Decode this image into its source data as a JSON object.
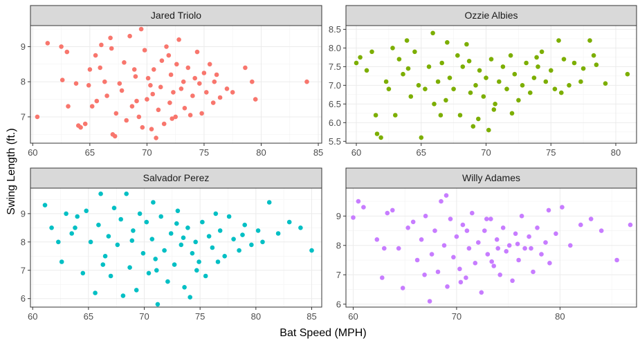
{
  "xlabel": "Bat Speed (MPH)",
  "ylabel": "Swing Length (ft.)",
  "chart_data": [
    {
      "type": "scatter",
      "title": "Jared Triolo",
      "color": "#F8766D",
      "xlim": [
        59.8,
        85.3
      ],
      "ylim": [
        6.25,
        9.6
      ],
      "xticks": [
        60,
        65,
        70,
        75,
        80,
        85
      ],
      "xtick_labels": [
        "60",
        "65",
        "70",
        "75",
        "80",
        "85"
      ],
      "yticks": [
        7,
        8,
        9
      ],
      "ytick_labels": [
        "7",
        "8",
        "9"
      ],
      "grid": true,
      "points": [
        [
          60.4,
          7.0
        ],
        [
          61.3,
          9.1
        ],
        [
          62.5,
          9.0
        ],
        [
          62.6,
          8.05
        ],
        [
          63.0,
          8.85
        ],
        [
          63.1,
          7.3
        ],
        [
          64.0,
          6.75
        ],
        [
          64.2,
          6.7
        ],
        [
          64.6,
          6.8
        ],
        [
          65.2,
          7.3
        ],
        [
          64.9,
          7.9
        ],
        [
          65.5,
          8.75
        ],
        [
          65.6,
          7.45
        ],
        [
          66.0,
          9.05
        ],
        [
          66.3,
          8.0
        ],
        [
          65.9,
          8.4
        ],
        [
          66.5,
          7.6
        ],
        [
          66.8,
          9.25
        ],
        [
          67.0,
          6.5
        ],
        [
          67.2,
          6.45
        ],
        [
          67.3,
          7.1
        ],
        [
          67.8,
          7.75
        ],
        [
          68.0,
          8.55
        ],
        [
          68.2,
          6.9
        ],
        [
          68.5,
          9.3
        ],
        [
          68.7,
          7.3
        ],
        [
          69.0,
          8.15
        ],
        [
          69.3,
          7.0
        ],
        [
          69.5,
          9.5
        ],
        [
          69.6,
          6.7
        ],
        [
          69.8,
          8.9
        ],
        [
          70.0,
          7.5
        ],
        [
          70.1,
          8.1
        ],
        [
          70.3,
          7.9
        ],
        [
          70.5,
          7.65
        ],
        [
          70.6,
          8.35
        ],
        [
          70.8,
          6.4
        ],
        [
          71.0,
          7.2
        ],
        [
          71.2,
          7.85
        ],
        [
          71.3,
          8.6
        ],
        [
          71.5,
          6.8
        ],
        [
          71.7,
          9.0
        ],
        [
          72.0,
          7.4
        ],
        [
          72.1,
          8.2
        ],
        [
          72.3,
          7.7
        ],
        [
          72.5,
          7.0
        ],
        [
          72.6,
          8.5
        ],
        [
          72.8,
          9.2
        ],
        [
          73.0,
          7.8
        ],
        [
          73.2,
          8.0
        ],
        [
          73.3,
          7.25
        ],
        [
          73.6,
          8.4
        ],
        [
          74.0,
          7.6
        ],
        [
          74.2,
          8.1
        ],
        [
          74.4,
          8.85
        ],
        [
          74.6,
          7.95
        ],
        [
          74.8,
          7.1
        ],
        [
          75.0,
          8.25
        ],
        [
          75.2,
          7.7
        ],
        [
          75.5,
          8.5
        ],
        [
          75.8,
          7.4
        ],
        [
          76.1,
          8.2
        ],
        [
          76.4,
          7.55
        ],
        [
          77.0,
          7.8
        ],
        [
          77.5,
          7.7
        ],
        [
          78.6,
          8.4
        ],
        [
          79.2,
          8.0
        ],
        [
          79.5,
          7.5
        ],
        [
          84.0,
          8.0
        ],
        [
          63.8,
          7.95
        ],
        [
          65.0,
          8.35
        ],
        [
          66.9,
          8.95
        ],
        [
          68.9,
          8.35
        ],
        [
          70.4,
          6.65
        ],
        [
          71.9,
          8.75
        ],
        [
          73.8,
          7.05
        ],
        [
          75.9,
          8.0
        ],
        [
          67.6,
          7.95
        ],
        [
          69.1,
          7.45
        ],
        [
          72.2,
          6.95
        ]
      ]
    },
    {
      "type": "scatter",
      "title": "Ozzie Albies",
      "color": "#7CAE00",
      "xlim": [
        59.2,
        81.6
      ],
      "ylim": [
        5.45,
        8.6
      ],
      "xticks": [
        60,
        65,
        70,
        75,
        80
      ],
      "xtick_labels": [
        "60",
        "65",
        "70",
        "75",
        "80"
      ],
      "yticks": [
        5.5,
        6.0,
        6.5,
        7.0,
        7.5,
        8.0,
        8.5
      ],
      "ytick_labels": [
        "5.5",
        "6.0",
        "6.5",
        "7.0",
        "7.5",
        "8.0",
        "8.5"
      ],
      "grid": true,
      "points": [
        [
          60.0,
          7.6
        ],
        [
          60.3,
          7.75
        ],
        [
          60.8,
          7.4
        ],
        [
          61.2,
          7.9
        ],
        [
          61.5,
          6.2
        ],
        [
          61.6,
          5.7
        ],
        [
          61.9,
          5.6
        ],
        [
          62.3,
          7.1
        ],
        [
          62.8,
          8.0
        ],
        [
          63.0,
          6.2
        ],
        [
          63.3,
          7.7
        ],
        [
          63.6,
          7.3
        ],
        [
          63.9,
          8.2
        ],
        [
          64.2,
          6.7
        ],
        [
          64.5,
          7.9
        ],
        [
          64.8,
          7.0
        ],
        [
          65.0,
          5.6
        ],
        [
          65.3,
          6.9
        ],
        [
          65.6,
          7.5
        ],
        [
          65.9,
          8.4
        ],
        [
          66.0,
          6.5
        ],
        [
          66.3,
          7.1
        ],
        [
          66.6,
          7.6
        ],
        [
          66.9,
          6.6
        ],
        [
          67.2,
          7.2
        ],
        [
          67.5,
          6.9
        ],
        [
          67.8,
          7.8
        ],
        [
          68.0,
          6.2
        ],
        [
          68.2,
          7.5
        ],
        [
          68.5,
          8.1
        ],
        [
          68.8,
          6.8
        ],
        [
          69.0,
          5.9
        ],
        [
          69.2,
          7.0
        ],
        [
          69.5,
          7.4
        ],
        [
          69.8,
          6.7
        ],
        [
          70.0,
          7.2
        ],
        [
          70.2,
          5.8
        ],
        [
          70.4,
          7.7
        ],
        [
          70.7,
          6.5
        ],
        [
          71.0,
          7.1
        ],
        [
          71.3,
          7.5
        ],
        [
          71.6,
          6.9
        ],
        [
          71.9,
          7.8
        ],
        [
          72.2,
          7.3
        ],
        [
          72.5,
          6.6
        ],
        [
          72.8,
          7.0
        ],
        [
          73.1,
          7.6
        ],
        [
          73.4,
          6.8
        ],
        [
          73.7,
          7.2
        ],
        [
          74.0,
          7.5
        ],
        [
          74.3,
          7.9
        ],
        [
          74.6,
          7.1
        ],
        [
          75.0,
          7.4
        ],
        [
          75.3,
          6.9
        ],
        [
          75.6,
          8.2
        ],
        [
          76.0,
          7.7
        ],
        [
          76.4,
          7.0
        ],
        [
          76.8,
          7.6
        ],
        [
          77.3,
          7.1
        ],
        [
          78.0,
          8.2
        ],
        [
          78.3,
          7.8
        ],
        [
          78.5,
          7.55
        ],
        [
          79.2,
          7.05
        ],
        [
          80.9,
          7.3
        ],
        [
          62.5,
          6.9
        ],
        [
          64.0,
          7.45
        ],
        [
          67.0,
          8.15
        ],
        [
          68.7,
          7.65
        ],
        [
          70.6,
          6.35
        ],
        [
          72.0,
          6.25
        ],
        [
          73.9,
          7.75
        ],
        [
          75.8,
          6.8
        ],
        [
          77.5,
          7.45
        ],
        [
          66.5,
          6.2
        ],
        [
          69.4,
          6.1
        ]
      ]
    },
    {
      "type": "scatter",
      "title": "Salvador Perez",
      "color": "#00BFC4",
      "xlim": [
        59.8,
        85.9
      ],
      "ylim": [
        5.7,
        9.9
      ],
      "xticks": [
        60,
        65,
        70,
        75,
        80,
        85
      ],
      "xtick_labels": [
        "60",
        "65",
        "70",
        "75",
        "80",
        "85"
      ],
      "yticks": [
        6,
        7,
        8,
        9
      ],
      "ytick_labels": [
        "6",
        "7",
        "8",
        "9"
      ],
      "grid": true,
      "points": [
        [
          61.1,
          9.3
        ],
        [
          61.7,
          8.5
        ],
        [
          62.3,
          8.0
        ],
        [
          62.6,
          7.3
        ],
        [
          63.0,
          9.0
        ],
        [
          63.5,
          8.3
        ],
        [
          64.0,
          8.9
        ],
        [
          64.5,
          6.9
        ],
        [
          64.8,
          9.1
        ],
        [
          65.2,
          8.0
        ],
        [
          65.6,
          6.2
        ],
        [
          65.9,
          8.6
        ],
        [
          66.1,
          9.7
        ],
        [
          66.5,
          7.5
        ],
        [
          66.8,
          8.2
        ],
        [
          67.0,
          6.8
        ],
        [
          67.3,
          9.2
        ],
        [
          67.6,
          7.9
        ],
        [
          67.9,
          8.8
        ],
        [
          68.1,
          6.1
        ],
        [
          68.4,
          9.7
        ],
        [
          68.7,
          7.1
        ],
        [
          69.0,
          8.4
        ],
        [
          69.3,
          6.3
        ],
        [
          69.6,
          9.0
        ],
        [
          69.9,
          7.6
        ],
        [
          70.2,
          8.7
        ],
        [
          70.4,
          6.9
        ],
        [
          70.7,
          8.1
        ],
        [
          71.0,
          7.4
        ],
        [
          71.2,
          5.8
        ],
        [
          71.5,
          8.9
        ],
        [
          71.8,
          7.7
        ],
        [
          72.1,
          6.6
        ],
        [
          72.4,
          8.3
        ],
        [
          72.7,
          7.2
        ],
        [
          73.0,
          9.1
        ],
        [
          73.3,
          7.9
        ],
        [
          73.6,
          6.4
        ],
        [
          73.9,
          8.5
        ],
        [
          74.1,
          6.05
        ],
        [
          74.3,
          7.6
        ],
        [
          74.6,
          8.0
        ],
        [
          74.9,
          7.3
        ],
        [
          75.2,
          8.7
        ],
        [
          75.5,
          6.8
        ],
        [
          75.8,
          8.2
        ],
        [
          76.1,
          7.8
        ],
        [
          76.4,
          9.0
        ],
        [
          76.8,
          8.4
        ],
        [
          77.2,
          7.5
        ],
        [
          77.6,
          8.9
        ],
        [
          78.0,
          8.1
        ],
        [
          78.5,
          7.7
        ],
        [
          79.0,
          8.6
        ],
        [
          79.6,
          7.9
        ],
        [
          80.2,
          8.4
        ],
        [
          80.6,
          8.0
        ],
        [
          81.2,
          9.4
        ],
        [
          82.0,
          8.3
        ],
        [
          83.0,
          8.7
        ],
        [
          84.0,
          8.5
        ],
        [
          85.0,
          7.7
        ],
        [
          63.8,
          8.5
        ],
        [
          66.3,
          7.2
        ],
        [
          68.9,
          8.05
        ],
        [
          71.1,
          7.0
        ],
        [
          72.9,
          8.65
        ],
        [
          74.7,
          7.0
        ],
        [
          76.6,
          7.3
        ],
        [
          78.8,
          8.25
        ],
        [
          70.8,
          9.4
        ],
        [
          73.5,
          8.15
        ]
      ]
    },
    {
      "type": "scatter",
      "title": "Willy Adames",
      "color": "#C77CFF",
      "xlim": [
        59.3,
        87.4
      ],
      "ylim": [
        5.9,
        9.95
      ],
      "xticks": [
        60,
        70,
        80
      ],
      "xtick_labels": [
        "60",
        "70",
        "80"
      ],
      "yticks": [
        6,
        7,
        8,
        9
      ],
      "ytick_labels": [
        "6",
        "7",
        "8",
        "9"
      ],
      "grid": true,
      "points": [
        [
          60.0,
          8.95
        ],
        [
          60.5,
          9.5
        ],
        [
          61.0,
          9.3
        ],
        [
          62.3,
          8.2
        ],
        [
          62.8,
          6.9
        ],
        [
          63.0,
          7.9
        ],
        [
          63.3,
          9.1
        ],
        [
          63.8,
          9.2
        ],
        [
          64.8,
          6.55
        ],
        [
          65.3,
          8.6
        ],
        [
          65.8,
          8.8
        ],
        [
          66.2,
          7.5
        ],
        [
          66.6,
          8.2
        ],
        [
          67.0,
          9.0
        ],
        [
          67.4,
          6.1
        ],
        [
          67.6,
          7.7
        ],
        [
          67.9,
          8.5
        ],
        [
          68.2,
          7.1
        ],
        [
          68.5,
          9.5
        ],
        [
          68.8,
          8.0
        ],
        [
          69.1,
          6.6
        ],
        [
          69.4,
          8.9
        ],
        [
          69.7,
          7.6
        ],
        [
          70.0,
          8.3
        ],
        [
          70.3,
          7.2
        ],
        [
          70.6,
          8.7
        ],
        [
          70.9,
          6.9
        ],
        [
          71.2,
          7.9
        ],
        [
          71.5,
          9.1
        ],
        [
          71.8,
          7.4
        ],
        [
          72.1,
          8.1
        ],
        [
          72.4,
          6.4
        ],
        [
          72.7,
          8.5
        ],
        [
          73.0,
          7.7
        ],
        [
          73.3,
          8.9
        ],
        [
          73.6,
          7.3
        ],
        [
          73.9,
          8.2
        ],
        [
          74.2,
          7.0
        ],
        [
          74.5,
          8.6
        ],
        [
          74.8,
          7.8
        ],
        [
          75.1,
          8.0
        ],
        [
          75.4,
          6.8
        ],
        [
          75.7,
          8.4
        ],
        [
          76.0,
          7.5
        ],
        [
          76.3,
          9.0
        ],
        [
          76.6,
          7.9
        ],
        [
          77.0,
          8.3
        ],
        [
          77.4,
          7.1
        ],
        [
          77.8,
          8.6
        ],
        [
          78.2,
          7.7
        ],
        [
          78.6,
          8.1
        ],
        [
          79.0,
          7.4
        ],
        [
          79.6,
          8.4
        ],
        [
          80.2,
          9.3
        ],
        [
          81.0,
          8.0
        ],
        [
          82.0,
          8.7
        ],
        [
          83.0,
          8.9
        ],
        [
          84.0,
          8.5
        ],
        [
          85.5,
          7.5
        ],
        [
          86.8,
          8.7
        ],
        [
          64.4,
          7.9
        ],
        [
          66.9,
          7.0
        ],
        [
          69.0,
          9.7
        ],
        [
          71.0,
          8.5
        ],
        [
          72.9,
          8.9
        ],
        [
          74.0,
          7.9
        ],
        [
          75.9,
          8.05
        ],
        [
          77.2,
          7.9
        ],
        [
          78.9,
          9.2
        ],
        [
          70.4,
          6.75
        ],
        [
          73.4,
          7.45
        ]
      ]
    }
  ]
}
